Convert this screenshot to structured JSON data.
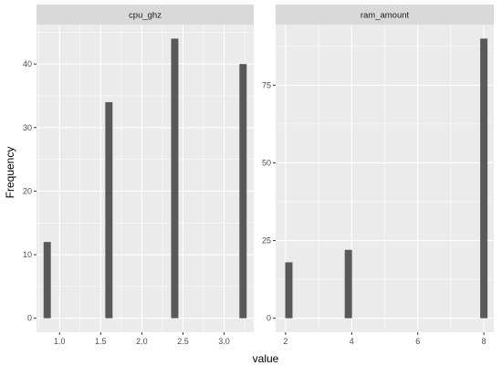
{
  "chart_data": {
    "type": "bar",
    "xlabel": "value",
    "ylabel": "Frequency",
    "grid": true,
    "legend": "none",
    "colors": {
      "panel_background": "#ebebeb",
      "strip_background": "#d9d9d9",
      "grid_major": "#ffffff",
      "bar_fill": "#595959"
    },
    "panels": [
      {
        "strip": "cpu_ghz",
        "xlim": [
          0.72,
          3.36
        ],
        "ylim": [
          -2.2,
          46.2
        ],
        "x_ticks": [
          1.0,
          1.5,
          2.0,
          2.5,
          3.0
        ],
        "x_tick_labels": [
          "1.0",
          "1.5",
          "2.0",
          "2.5",
          "3.0"
        ],
        "y_ticks": [
          0,
          10,
          20,
          30,
          40
        ],
        "y_tick_labels": [
          "0",
          "10",
          "20",
          "30",
          "40"
        ],
        "bar_width": 0.088,
        "bars": [
          {
            "x": 0.85,
            "y": 12
          },
          {
            "x": 1.6,
            "y": 34
          },
          {
            "x": 2.4,
            "y": 44
          },
          {
            "x": 3.23,
            "y": 40
          }
        ]
      },
      {
        "strip": "ram_amount",
        "xlim": [
          1.7,
          8.3
        ],
        "ylim": [
          -4.5,
          94.5
        ],
        "x_ticks": [
          2,
          4,
          6,
          8
        ],
        "x_tick_labels": [
          "2",
          "4",
          "6",
          "8"
        ],
        "y_ticks": [
          0,
          25,
          50,
          75
        ],
        "y_tick_labels": [
          "0",
          "25",
          "50",
          "75"
        ],
        "bar_width": 0.22,
        "bars": [
          {
            "x": 2.1,
            "y": 18
          },
          {
            "x": 3.9,
            "y": 22
          },
          {
            "x": 8.0,
            "y": 90
          }
        ]
      }
    ]
  }
}
